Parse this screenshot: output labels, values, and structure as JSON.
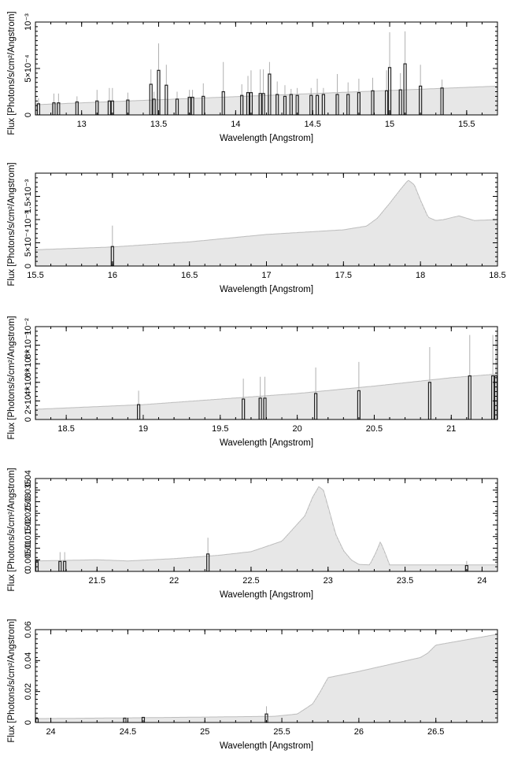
{
  "chart_data": [
    {
      "type": "bar",
      "xlabel": "Wavelength [Angstrom]",
      "ylabel": "Flux [Photons/s/cm²/Angstrom]",
      "xlim": [
        12.7,
        15.7
      ],
      "ylim": [
        0,
        0.001
      ],
      "x_ticks": [
        "13",
        "13.5",
        "14",
        "14.5",
        "15",
        "15.5"
      ],
      "y_ticks": [
        "0",
        "5×10⁻⁴",
        "10⁻³"
      ],
      "continuum": {
        "x": [
          12.7,
          15.7
        ],
        "y": [
          0.00011,
          0.00031
        ]
      },
      "lines": [
        {
          "x": 12.72,
          "y": 0.00012,
          "err": 6e-05
        },
        {
          "x": 12.82,
          "y": 0.00013,
          "err": 0.0001
        },
        {
          "x": 12.85,
          "y": 0.00013,
          "err": 0.0001
        },
        {
          "x": 12.97,
          "y": 0.00014,
          "err": 6e-05
        },
        {
          "x": 13.1,
          "y": 0.00015,
          "err": 0.00012
        },
        {
          "x": 13.18,
          "y": 0.00015,
          "err": 0.00014
        },
        {
          "x": 13.2,
          "y": 0.00015,
          "err": 0.00014
        },
        {
          "x": 13.3,
          "y": 0.00016,
          "err": 8e-05
        },
        {
          "x": 13.45,
          "y": 0.00033,
          "err": 0.00016
        },
        {
          "x": 13.47,
          "y": 0.00017,
          "err": 8e-05
        },
        {
          "x": 13.5,
          "y": 0.00048,
          "err": 0.00029
        },
        {
          "x": 13.55,
          "y": 0.00032,
          "err": 0.00022
        },
        {
          "x": 13.62,
          "y": 0.00017,
          "err": 8e-05
        },
        {
          "x": 13.7,
          "y": 0.00019,
          "err": 8e-05
        },
        {
          "x": 13.72,
          "y": 0.00019,
          "err": 8e-05
        },
        {
          "x": 13.79,
          "y": 0.0002,
          "err": 0.00014
        },
        {
          "x": 13.92,
          "y": 0.00025,
          "err": 0.00032
        },
        {
          "x": 14.04,
          "y": 0.00021,
          "err": 0.00012
        },
        {
          "x": 14.08,
          "y": 0.00024,
          "err": 0.00018
        },
        {
          "x": 14.1,
          "y": 0.00024,
          "err": 0.00024
        },
        {
          "x": 14.16,
          "y": 0.00023,
          "err": 0.00026
        },
        {
          "x": 14.18,
          "y": 0.00023,
          "err": 0.00026
        },
        {
          "x": 14.22,
          "y": 0.00044,
          "err": 0.00013
        },
        {
          "x": 14.27,
          "y": 0.00022,
          "err": 0.00014
        },
        {
          "x": 14.32,
          "y": 0.0002,
          "err": 0.00012
        },
        {
          "x": 14.36,
          "y": 0.00022,
          "err": 6e-05
        },
        {
          "x": 14.4,
          "y": 0.00021,
          "err": 8e-05
        },
        {
          "x": 14.49,
          "y": 0.00021,
          "err": 8e-05
        },
        {
          "x": 14.53,
          "y": 0.00021,
          "err": 0.00018
        },
        {
          "x": 14.57,
          "y": 0.00022,
          "err": 7e-05
        },
        {
          "x": 14.66,
          "y": 0.00022,
          "err": 0.00022
        },
        {
          "x": 14.73,
          "y": 0.00022,
          "err": 0.00013
        },
        {
          "x": 14.8,
          "y": 0.00024,
          "err": 0.00015
        },
        {
          "x": 14.89,
          "y": 0.00026,
          "err": 0.00014
        },
        {
          "x": 14.98,
          "y": 0.00026,
          "err": 0.00022
        },
        {
          "x": 15.0,
          "y": 0.00051,
          "err": 0.00038
        },
        {
          "x": 15.07,
          "y": 0.00027,
          "err": 0.00018
        },
        {
          "x": 15.1,
          "y": 0.00055,
          "err": 0.00035
        },
        {
          "x": 15.2,
          "y": 0.00031,
          "err": 0.00023
        },
        {
          "x": 15.34,
          "y": 0.00029,
          "err": 9e-05
        }
      ]
    },
    {
      "type": "bar",
      "xlabel": "Wavelength [Angstrom]",
      "ylabel": "Flux [Photons/s/cm²/Angstrom]",
      "xlim": [
        15.5,
        18.5
      ],
      "ylim": [
        0,
        0.002
      ],
      "x_ticks": [
        "15.5",
        "16",
        "16.5",
        "17",
        "17.5",
        "18",
        "18.5"
      ],
      "y_ticks": [
        "0",
        "5×10⁻⁴",
        "10⁻³",
        "1.5×10⁻³"
      ],
      "continuum": {
        "x": [
          15.5,
          16.0,
          16.5,
          17.0,
          17.5,
          17.65,
          17.72,
          17.8,
          17.87,
          17.92,
          17.96,
          18.0,
          18.05,
          18.1,
          18.15,
          18.25,
          18.35,
          18.5
        ],
        "y": [
          0.00035,
          0.00041,
          0.00052,
          0.00068,
          0.00078,
          0.00086,
          0.00103,
          0.00135,
          0.00165,
          0.00185,
          0.00175,
          0.00142,
          0.00105,
          0.00098,
          0.001,
          0.00108,
          0.00098,
          0.001
        ]
      },
      "lines": [
        {
          "x": 16.0,
          "y": 0.00042,
          "err": 0.00045
        }
      ]
    },
    {
      "type": "bar",
      "xlabel": "Wavelength [Angstrom]",
      "ylabel": "Flux [Photons/s/cm²/Angstrom]",
      "xlim": [
        18.3,
        21.3
      ],
      "ylim": [
        0,
        0.01
      ],
      "x_ticks": [
        "18.5",
        "19",
        "19.5",
        "20",
        "20.5",
        "21"
      ],
      "y_ticks": [
        "0",
        "2×10⁻³",
        "4×10⁻³",
        "6×10⁻³",
        "8×10⁻³",
        "10⁻²"
      ],
      "continuum": {
        "x": [
          18.3,
          19.0,
          19.5,
          20.0,
          20.5,
          21.0,
          21.3
        ],
        "y": [
          0.0011,
          0.0016,
          0.0022,
          0.0028,
          0.0036,
          0.0045,
          0.0049
        ]
      },
      "lines": [
        {
          "x": 18.97,
          "y": 0.0016,
          "err": 0.0015
        },
        {
          "x": 19.65,
          "y": 0.0022,
          "err": 0.0022
        },
        {
          "x": 19.76,
          "y": 0.0023,
          "err": 0.0023
        },
        {
          "x": 19.79,
          "y": 0.0023,
          "err": 0.0023
        },
        {
          "x": 20.12,
          "y": 0.0028,
          "err": 0.0028
        },
        {
          "x": 20.4,
          "y": 0.0031,
          "err": 0.0031
        },
        {
          "x": 20.86,
          "y": 0.004,
          "err": 0.0038
        },
        {
          "x": 21.12,
          "y": 0.0047,
          "err": 0.0044
        },
        {
          "x": 21.27,
          "y": 0.0047,
          "err": 0.0044
        },
        {
          "x": 21.29,
          "y": 0.0047,
          "err": 0.0044
        }
      ]
    },
    {
      "type": "bar",
      "xlabel": "Wavelength [Angstrom]",
      "ylabel": "Flux [Photons/s/cm²/Angstrom]",
      "xlim": [
        21.1,
        24.1
      ],
      "ylim": [
        0,
        0.04
      ],
      "x_ticks": [
        "21.5",
        "22",
        "22.5",
        "23",
        "23.5",
        "24"
      ],
      "y_ticks": [
        "0",
        "0.005",
        "0.01",
        "0.015",
        "0.02",
        "0.025",
        "0.03",
        "0.035",
        "0.04"
      ],
      "continuum": {
        "x": [
          21.1,
          21.5,
          21.7,
          22.0,
          22.3,
          22.5,
          22.7,
          22.85,
          22.9,
          22.94,
          22.97,
          23.0,
          23.05,
          23.1,
          23.15,
          23.2,
          23.27,
          23.31,
          23.34,
          23.37,
          23.4,
          24.1
        ],
        "y": [
          0.0045,
          0.005,
          0.0045,
          0.0055,
          0.007,
          0.0085,
          0.013,
          0.024,
          0.032,
          0.0365,
          0.035,
          0.028,
          0.016,
          0.009,
          0.005,
          0.003,
          0.0028,
          0.008,
          0.0128,
          0.008,
          0.0028,
          0.0028
        ]
      },
      "lines": [
        {
          "x": 21.11,
          "y": 0.0045,
          "err": 0.0
        },
        {
          "x": 21.26,
          "y": 0.0043,
          "err": 0.004
        },
        {
          "x": 21.29,
          "y": 0.0043,
          "err": 0.004
        },
        {
          "x": 22.22,
          "y": 0.0075,
          "err": 0.007
        },
        {
          "x": 23.9,
          "y": 0.0025,
          "err": 0.002
        }
      ]
    },
    {
      "type": "bar",
      "xlabel": "Wavelength [Angstrom]",
      "ylabel": "Flux [Photons/s/cm²/Angstrom]",
      "xlim": [
        23.9,
        26.9
      ],
      "ylim": [
        0,
        0.06
      ],
      "x_ticks": [
        "24",
        "24.5",
        "25",
        "25.5",
        "26",
        "26.5"
      ],
      "y_ticks": [
        "0",
        "0.02",
        "0.04",
        "0.06"
      ],
      "continuum": {
        "x": [
          23.9,
          24.5,
          25.0,
          25.45,
          25.6,
          25.7,
          25.75,
          25.8,
          26.0,
          26.4,
          26.45,
          26.5,
          26.9
        ],
        "y": [
          0.0025,
          0.003,
          0.0035,
          0.004,
          0.0055,
          0.012,
          0.02,
          0.029,
          0.033,
          0.042,
          0.045,
          0.05,
          0.057
        ]
      },
      "lines": [
        {
          "x": 23.91,
          "y": 0.0025,
          "err": 0.0
        },
        {
          "x": 24.48,
          "y": 0.0028,
          "err": 0.0
        },
        {
          "x": 24.6,
          "y": 0.0033,
          "err": 0.0
        },
        {
          "x": 25.4,
          "y": 0.0055,
          "err": 0.005
        }
      ]
    }
  ]
}
